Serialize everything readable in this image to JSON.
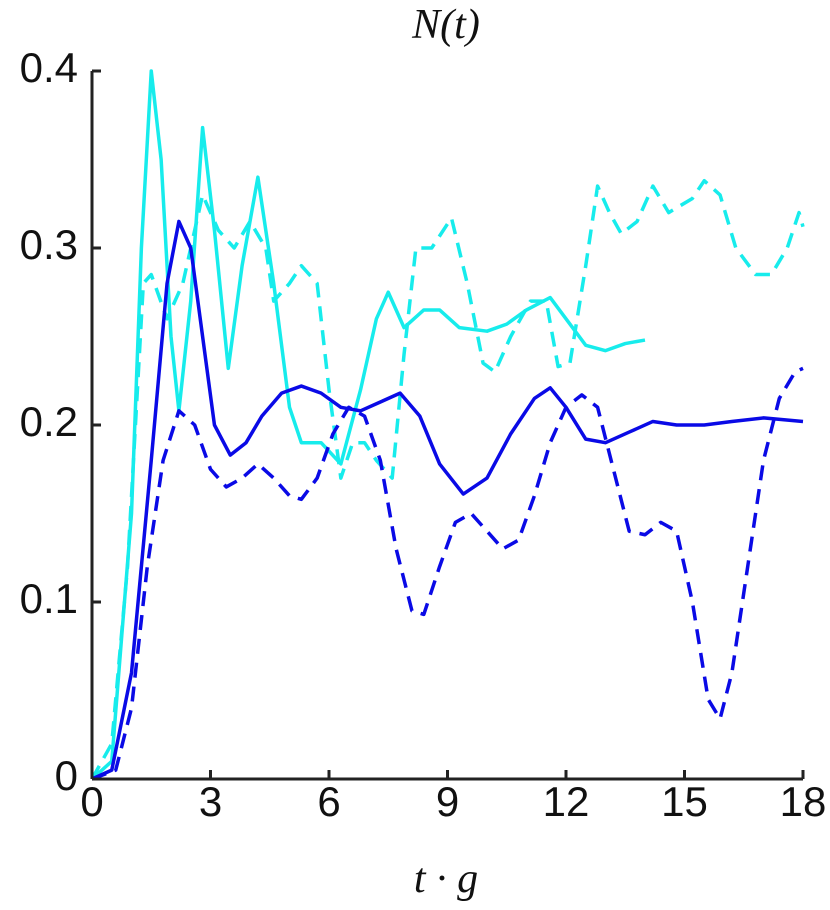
{
  "chart_data": {
    "type": "line",
    "title": "N(t)",
    "x_label": "t · g",
    "xlim": [
      0,
      18
    ],
    "xticks": [
      0,
      3,
      6,
      9,
      12,
      15,
      18
    ],
    "ylim": [
      0,
      0.4
    ],
    "yticks": [
      0,
      0.1,
      0.2,
      0.3,
      0.4
    ],
    "series": [
      {
        "color": "#17ecec",
        "dashed": false,
        "x": [
          0,
          0.5,
          1.0,
          1.25,
          1.5,
          1.75,
          2.0,
          2.2,
          2.5,
          2.8,
          3.1,
          3.45,
          3.8,
          4.2,
          4.6,
          5.0,
          5.3,
          5.8,
          6.3,
          6.8,
          7.2,
          7.5,
          7.9,
          8.4,
          8.8,
          9.3,
          10,
          10.5,
          11,
          11.6,
          12,
          12.5,
          13,
          13.5,
          14
        ],
        "values": [
          0,
          0.01,
          0.15,
          0.3,
          0.4,
          0.35,
          0.25,
          0.208,
          0.27,
          0.368,
          0.31,
          0.232,
          0.29,
          0.34,
          0.28,
          0.21,
          0.19,
          0.19,
          0.178,
          0.22,
          0.26,
          0.275,
          0.255,
          0.265,
          0.265,
          0.255,
          0.253,
          0.257,
          0.265,
          0.272,
          0.26,
          0.245,
          0.242,
          0.246,
          0.248
        ]
      },
      {
        "color": "#17ecec",
        "dashed": true,
        "x": [
          0,
          0.5,
          0.9,
          1.3,
          1.5,
          1.9,
          2.3,
          2.8,
          3.2,
          3.6,
          4.0,
          4.4,
          4.6,
          5.0,
          5.3,
          5.7,
          6.0,
          6.3,
          6.6,
          6.9,
          7.2,
          7.6,
          7.9,
          8.2,
          8.6,
          9.1,
          9.5,
          9.9,
          10.2,
          10.6,
          11.1,
          11.5,
          11.8,
          12.1,
          12.5,
          12.8,
          13.1,
          13.4,
          13.8,
          14.2,
          14.6,
          15.2,
          15.5,
          15.9,
          16.3,
          16.8,
          17.2,
          17.6,
          17.9,
          18
        ],
        "values": [
          0,
          0.02,
          0.12,
          0.28,
          0.285,
          0.26,
          0.28,
          0.33,
          0.31,
          0.3,
          0.315,
          0.3,
          0.27,
          0.28,
          0.29,
          0.28,
          0.22,
          0.17,
          0.19,
          0.19,
          0.18,
          0.17,
          0.24,
          0.3,
          0.3,
          0.317,
          0.28,
          0.235,
          0.23,
          0.25,
          0.27,
          0.27,
          0.233,
          0.235,
          0.29,
          0.335,
          0.32,
          0.308,
          0.315,
          0.335,
          0.32,
          0.328,
          0.338,
          0.33,
          0.3,
          0.285,
          0.285,
          0.3,
          0.32,
          0.312
        ]
      },
      {
        "color": "#0a0ae6",
        "dashed": false,
        "x": [
          0,
          0.5,
          1.0,
          1.5,
          1.9,
          2.2,
          2.5,
          2.8,
          3.1,
          3.5,
          3.9,
          4.3,
          4.8,
          5.3,
          5.8,
          6.3,
          6.8,
          7.3,
          7.8,
          8.3,
          8.8,
          9.4,
          10,
          10.6,
          11.2,
          11.6,
          12.0,
          12.5,
          13,
          13.6,
          14.2,
          14.8,
          15.5,
          16.2,
          17,
          18
        ],
        "values": [
          0,
          0.005,
          0.06,
          0.18,
          0.28,
          0.315,
          0.3,
          0.25,
          0.2,
          0.183,
          0.19,
          0.205,
          0.218,
          0.222,
          0.218,
          0.21,
          0.208,
          0.213,
          0.218,
          0.205,
          0.178,
          0.161,
          0.17,
          0.195,
          0.215,
          0.221,
          0.21,
          0.192,
          0.19,
          0.196,
          0.202,
          0.2,
          0.2,
          0.202,
          0.204,
          0.202
        ]
      },
      {
        "color": "#0a0ae6",
        "dashed": true,
        "x": [
          0,
          0.6,
          1.0,
          1.4,
          1.8,
          2.2,
          2.6,
          3.0,
          3.4,
          3.8,
          4.2,
          4.6,
          5.0,
          5.3,
          5.7,
          6.1,
          6.5,
          6.9,
          7.3,
          7.7,
          8.1,
          8.4,
          8.8,
          9.2,
          9.6,
          10.0,
          10.4,
          10.8,
          11.2,
          11.6,
          12.0,
          12.4,
          12.8,
          13.2,
          13.6,
          14.0,
          14.4,
          14.8,
          15.2,
          15.6,
          15.9,
          16.2,
          16.6,
          17.0,
          17.4,
          17.8,
          18
        ],
        "values": [
          0,
          0.005,
          0.04,
          0.12,
          0.18,
          0.208,
          0.2,
          0.175,
          0.165,
          0.17,
          0.178,
          0.17,
          0.16,
          0.158,
          0.17,
          0.195,
          0.21,
          0.205,
          0.18,
          0.13,
          0.095,
          0.093,
          0.12,
          0.145,
          0.15,
          0.14,
          0.13,
          0.135,
          0.16,
          0.19,
          0.21,
          0.217,
          0.21,
          0.175,
          0.14,
          0.138,
          0.145,
          0.14,
          0.1,
          0.045,
          0.034,
          0.06,
          0.12,
          0.18,
          0.215,
          0.23,
          0.232
        ]
      }
    ]
  }
}
